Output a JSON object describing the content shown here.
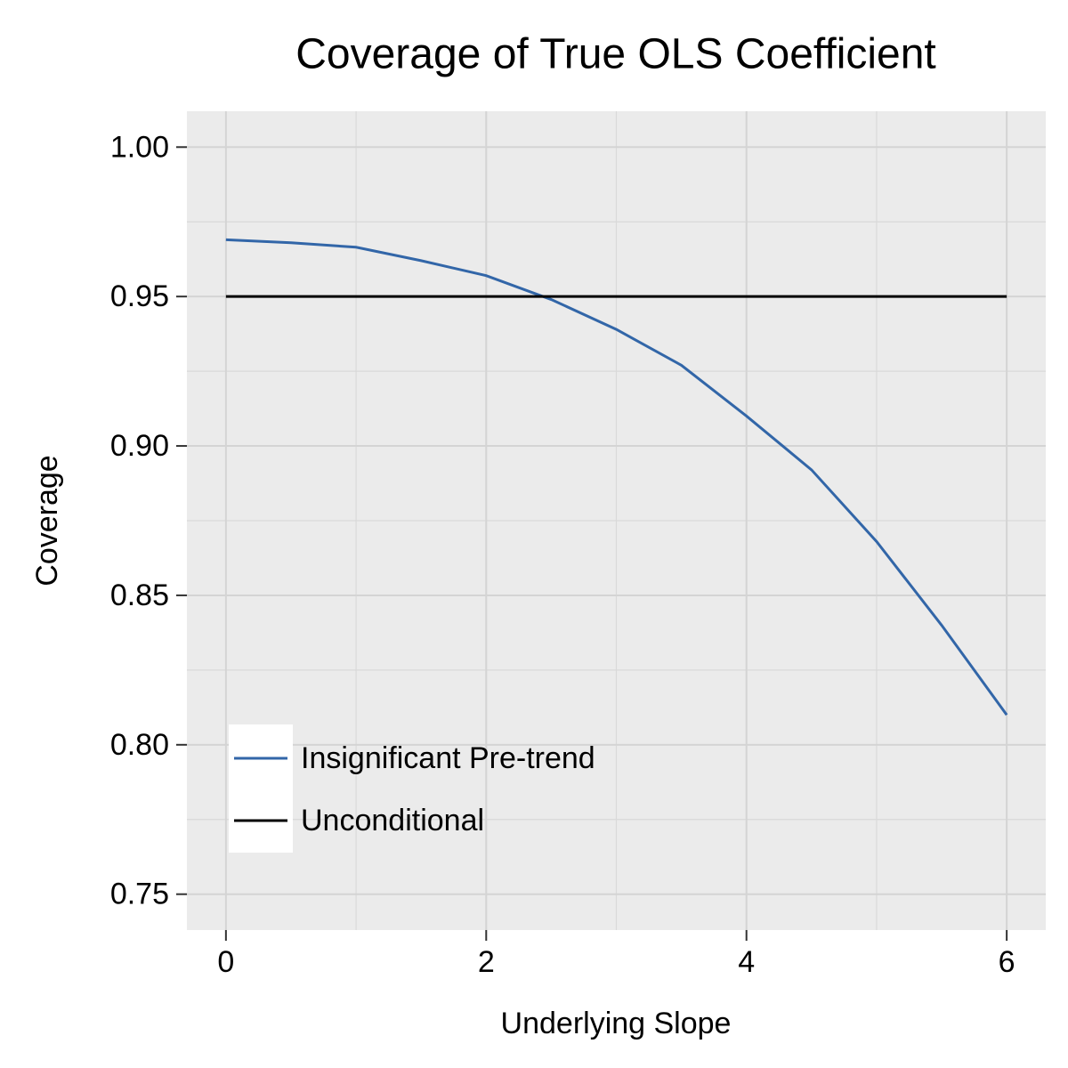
{
  "chart_data": {
    "type": "line",
    "title": "Coverage of True OLS Coefficient",
    "x_label": "Underlying Slope",
    "y_label": "Coverage",
    "x": [
      0,
      0.5,
      1,
      1.5,
      2,
      2.5,
      3,
      3.5,
      4,
      4.5,
      5,
      5.5,
      6
    ],
    "series": [
      {
        "name": "Insignificant Pre-trend",
        "color": "#3266a8",
        "values": [
          0.969,
          0.968,
          0.9665,
          0.962,
          0.957,
          0.949,
          0.939,
          0.927,
          0.91,
          0.892,
          0.868,
          0.84,
          0.81
        ]
      },
      {
        "name": "Unconditional",
        "color": "#000000",
        "values": [
          0.95,
          0.95,
          0.95,
          0.95,
          0.95,
          0.95,
          0.95,
          0.95,
          0.95,
          0.95,
          0.95,
          0.95,
          0.95
        ]
      }
    ],
    "xlim": [
      -0.3,
      6.3
    ],
    "ylim": [
      0.738,
      1.012
    ],
    "xticks": [
      0,
      2,
      4,
      6
    ],
    "yticks": [
      {
        "value": 0.75,
        "label": "0.75"
      },
      {
        "value": 0.8,
        "label": "0.80"
      },
      {
        "value": 0.85,
        "label": "0.85"
      },
      {
        "value": 0.9,
        "label": "0.90"
      },
      {
        "value": 0.95,
        "label": "0.95"
      },
      {
        "value": 1,
        "label": "1.00"
      }
    ],
    "xminor": [
      1,
      3,
      5
    ],
    "yminor": [
      0.775,
      0.825,
      0.875,
      0.925,
      0.975
    ],
    "grid": true,
    "legend": "bottom-left"
  }
}
